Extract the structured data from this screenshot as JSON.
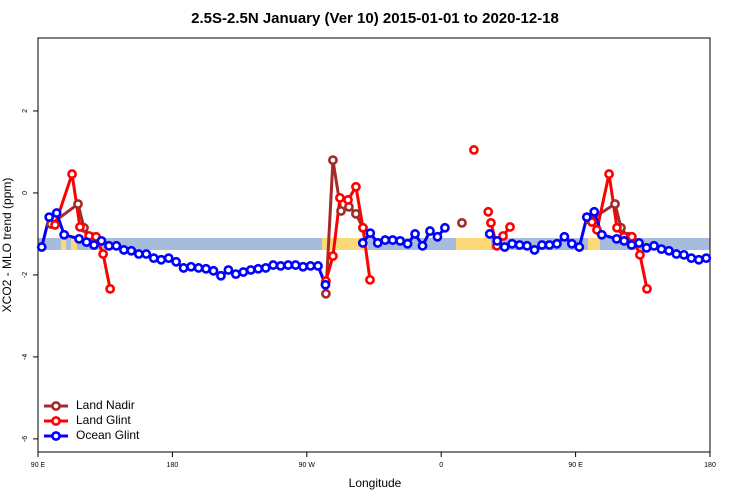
{
  "chart_data": {
    "type": "line",
    "title": "2.5S-2.5N January (Ver 10)   2015-01-01 to 2020-12-18",
    "x_label": "Longitude",
    "y_label": "XCO2 - MLO trend (ppm)",
    "xlim": [
      90,
      540
    ],
    "xticks": [
      {
        "value": 90,
        "label": "90 E"
      },
      180,
      {
        "value": 270,
        "label": "90 W"
      },
      {
        "value": 360,
        "label": "0"
      },
      {
        "value": 450,
        "label": "90 E"
      },
      {
        "value": 540,
        "label": "180"
      }
    ],
    "ylim": [
      -6.32,
      3.78
    ],
    "yticks": [
      -6,
      -4,
      -2,
      0,
      2
    ],
    "legend": "bottom-left",
    "series": [
      {
        "name": "Land Nadir",
        "color": "#a52a2a",
        "x": [
          98.7,
          116.8,
          120.8,
          125.5,
          null,
          282.8,
          287.5,
          292.9,
          298.2,
          302.9,
          307.6,
          null,
          373.9,
          null,
          459.6,
          476.4,
          480.4,
          485.1
        ],
        "values": [
          -0.76,
          -0.27,
          -0.85,
          -1.07,
          null,
          -2.46,
          0.8,
          -0.44,
          -0.34,
          -0.51,
          -0.85,
          null,
          -0.73,
          null,
          -0.66,
          -0.27,
          -0.85,
          -1.07
        ]
      },
      {
        "name": "Land Glint",
        "color": "#ff0000",
        "x": [
          101.4,
          112.8,
          118.1,
          124.2,
          128.9,
          133.6,
          138.3,
          null,
          282.8,
          287.5,
          292.2,
          297.6,
          302.9,
          307.6,
          312.3,
          null,
          381.9,
          null,
          391.5,
          null,
          393.3,
          397.3,
          401.4,
          406.1,
          null,
          460.9,
          464.3,
          472.4,
          477.7,
          482.4,
          487.7,
          493.1,
          497.8
        ],
        "values": [
          -0.78,
          0.46,
          -0.83,
          -1.05,
          -1.07,
          -1.49,
          -2.34,
          null,
          -2.15,
          -1.54,
          -0.12,
          -0.17,
          0.15,
          -0.85,
          -2.12,
          null,
          1.05,
          null,
          -0.46,
          null,
          -0.73,
          -1.29,
          -1.05,
          -0.83,
          null,
          -0.71,
          -0.9,
          0.46,
          -0.85,
          -1.07,
          -1.07,
          -1.51,
          -2.34
        ]
      },
      {
        "name": "Ocean Glint",
        "color": "#0000ff",
        "x": [
          92.5,
          97.5,
          102.5,
          107.5,
          117.5,
          122.5,
          127.5,
          132.5,
          137.5,
          142.5,
          147.5,
          152.5,
          157.5,
          162.5,
          167.5,
          172.5,
          177.5,
          182.5,
          187.5,
          192.5,
          197.5,
          202.5,
          207.5,
          212.5,
          217.5,
          222.5,
          227.5,
          232.5,
          237.5,
          242.5,
          247.5,
          252.5,
          257.5,
          262.5,
          267.5,
          272.5,
          277.5,
          282.5,
          null,
          307.5,
          312.5,
          317.5,
          322.5,
          327.5,
          332.5,
          337.5,
          342.5,
          347.5,
          352.5,
          357.5,
          362.5,
          null,
          392.5,
          397.5,
          402.5,
          407.5,
          412.5,
          417.5,
          422.5,
          427.5,
          432.5,
          437.5,
          442.5,
          447.5,
          452.5,
          457.5,
          462.5,
          467.5,
          477.5,
          482.5,
          487.5,
          492.5,
          497.5,
          502.5,
          507.5,
          512.5,
          517.5,
          522.5,
          527.5,
          532.5,
          537.5
        ],
        "values": [
          -1.32,
          -0.59,
          -0.49,
          -1.02,
          -1.12,
          -1.2,
          -1.27,
          -1.17,
          -1.29,
          -1.29,
          -1.39,
          -1.41,
          -1.49,
          -1.49,
          -1.59,
          -1.63,
          -1.59,
          -1.68,
          -1.83,
          -1.8,
          -1.83,
          -1.85,
          -1.9,
          -2.02,
          -1.88,
          -1.98,
          -1.93,
          -1.88,
          -1.85,
          -1.83,
          -1.76,
          -1.78,
          -1.76,
          -1.76,
          -1.8,
          -1.78,
          -1.78,
          -2.24,
          null,
          -1.22,
          -0.98,
          -1.22,
          -1.15,
          -1.15,
          -1.17,
          -1.24,
          -1.0,
          -1.29,
          -0.93,
          -1.07,
          -0.85,
          null,
          -1.0,
          -1.17,
          -1.32,
          -1.24,
          -1.27,
          -1.29,
          -1.39,
          -1.27,
          -1.27,
          -1.24,
          -1.07,
          -1.24,
          -1.32,
          -0.59,
          -0.46,
          -1.02,
          -1.12,
          -1.17,
          -1.27,
          -1.22,
          -1.34,
          -1.29,
          -1.37,
          -1.41,
          -1.49,
          -1.51,
          -1.59,
          -1.63,
          -1.59
        ]
      }
    ]
  }
}
